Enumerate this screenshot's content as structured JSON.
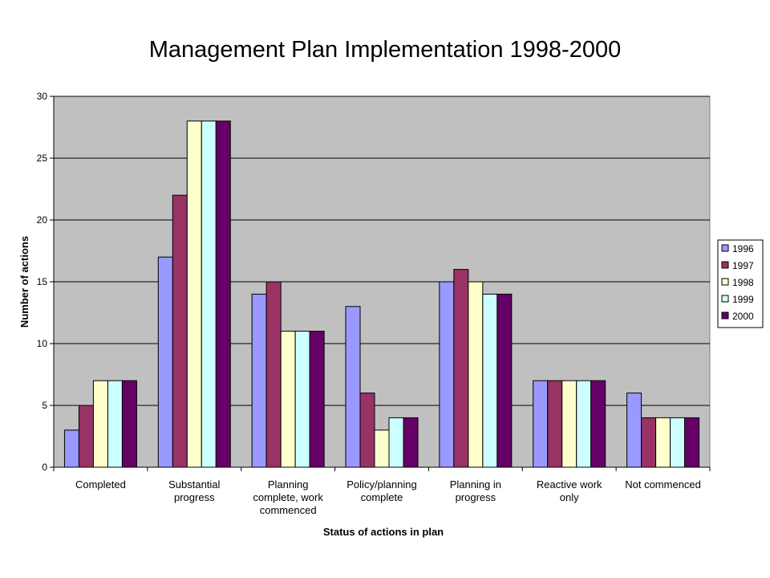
{
  "chart_data": {
    "type": "bar",
    "title": "Management Plan Implementation 1998-2000",
    "xlabel": "Status of actions in plan",
    "ylabel": "Number of actions",
    "ylim": [
      0,
      30
    ],
    "yticks": [
      0,
      5,
      10,
      15,
      20,
      25,
      30
    ],
    "grid": true,
    "legend_position": "right",
    "categories": [
      [
        "Completed"
      ],
      [
        "Substantial",
        "progress"
      ],
      [
        "Planning",
        "complete, work",
        "commenced"
      ],
      [
        "Policy/planning",
        "complete"
      ],
      [
        "Planning in",
        "progress"
      ],
      [
        "Reactive work",
        "only"
      ],
      [
        "Not commenced"
      ]
    ],
    "series": [
      {
        "name": "1996",
        "color": "#9999FF",
        "values": [
          3,
          17,
          14,
          13,
          15,
          7,
          6
        ]
      },
      {
        "name": "1997",
        "color": "#993366",
        "values": [
          5,
          22,
          15,
          6,
          16,
          7,
          4
        ]
      },
      {
        "name": "1998",
        "color": "#FFFFCC",
        "values": [
          7,
          28,
          11,
          3,
          15,
          7,
          4
        ]
      },
      {
        "name": "1999",
        "color": "#CCFFFF",
        "values": [
          7,
          28,
          11,
          4,
          14,
          7,
          4
        ]
      },
      {
        "name": "2000",
        "color": "#660066",
        "values": [
          7,
          28,
          11,
          4,
          14,
          7,
          4
        ]
      }
    ],
    "plot_background": "#C0C0C0"
  }
}
